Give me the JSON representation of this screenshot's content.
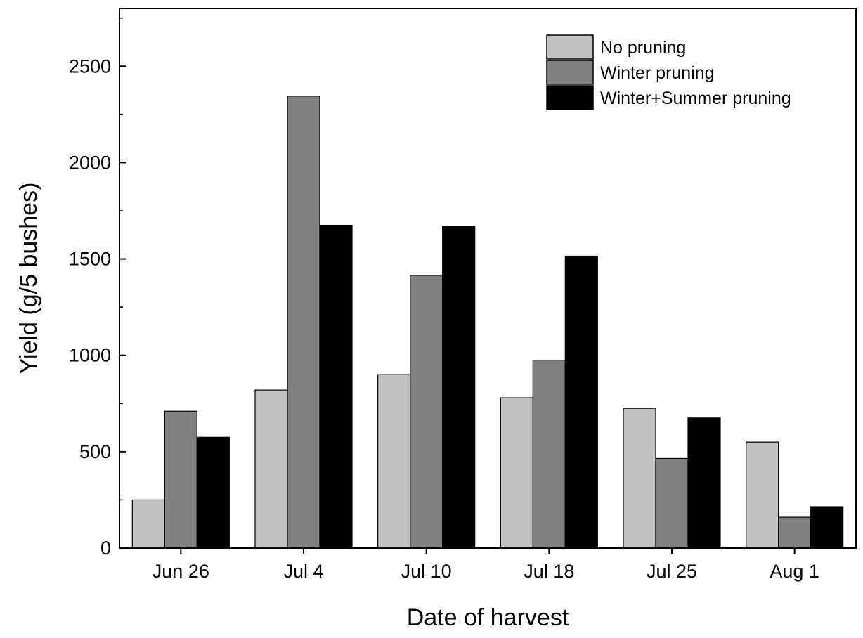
{
  "chart_data": {
    "type": "bar",
    "title": "",
    "xlabel": "Date of harvest",
    "ylabel": "Yield (g/5 bushes)",
    "ylim": [
      0,
      2800
    ],
    "yticks": [
      0,
      500,
      1000,
      1500,
      2000,
      2500
    ],
    "categories": [
      "Jun 26",
      "Jul 4",
      "Jul 10",
      "Jul 18",
      "Jul 25",
      "Aug 1"
    ],
    "series": [
      {
        "name": "No pruning",
        "color": "#c2c2c2",
        "values": [
          250,
          820,
          900,
          780,
          725,
          550
        ]
      },
      {
        "name": "Winter pruning",
        "color": "#808080",
        "values": [
          710,
          2345,
          1415,
          975,
          465,
          160
        ]
      },
      {
        "name": "Winter+Summer pruning",
        "color": "#000000",
        "values": [
          575,
          1675,
          1670,
          1515,
          675,
          215
        ]
      }
    ],
    "legend_position": "top-right",
    "grid": false
  }
}
